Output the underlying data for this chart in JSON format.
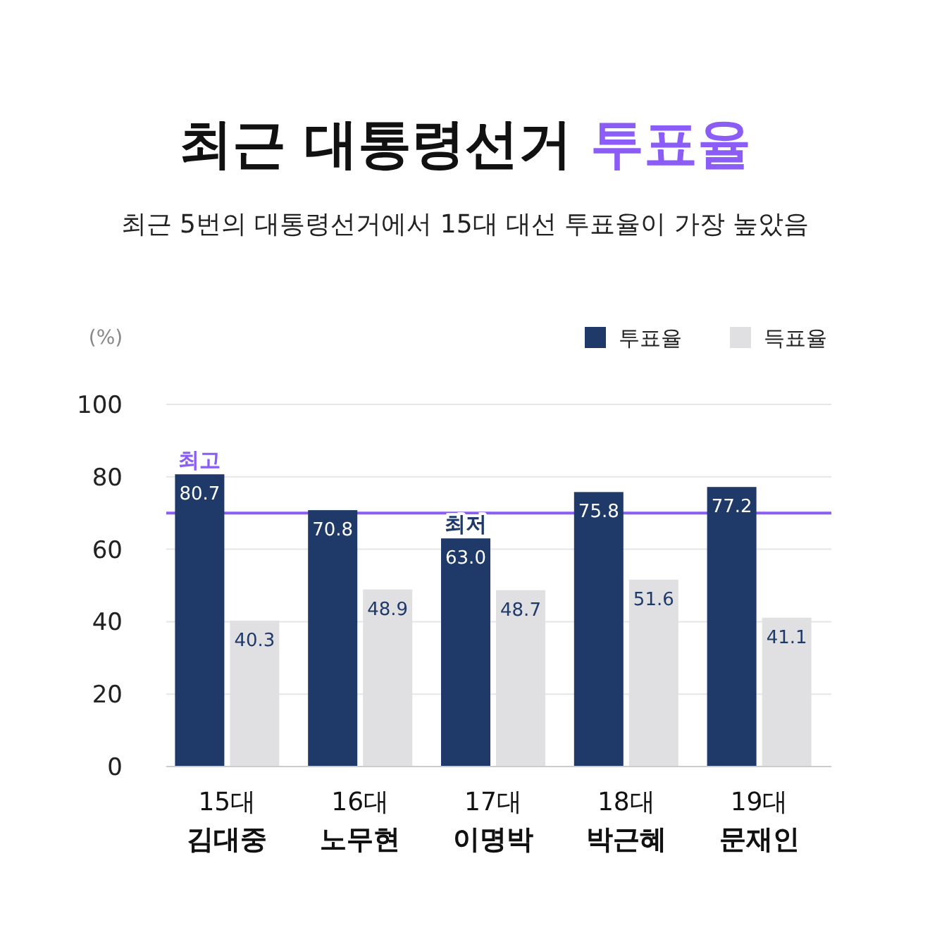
{
  "chart_data": {
    "type": "bar",
    "title": "최근 대통령선거 투표율",
    "subtitle": "최근 5번의 대통령선거에서 15대 대선 투표율이 가장 높았음",
    "ylabel": "(%)",
    "categories": [
      "15대\n김대중",
      "16대\n노무현",
      "17대\n이명박",
      "18대\n박근혜",
      "19대\n문재인"
    ],
    "series": [
      {
        "name": "투표율",
        "color": "#1f3a68",
        "values": [
          80.7,
          70.8,
          63.0,
          75.8,
          77.2
        ],
        "value_labels": [
          "80.7",
          "70.8",
          "63.0",
          "75.8",
          "77.2"
        ]
      },
      {
        "name": "득표율",
        "color": "#e0e0e3",
        "values": [
          40.3,
          48.9,
          48.7,
          51.6,
          41.1
        ],
        "value_labels": [
          "40.3",
          "48.9",
          "48.7",
          "51.6",
          "41.1"
        ]
      }
    ],
    "ylim": [
      0,
      100
    ],
    "yticks": [
      0,
      20,
      40,
      60,
      80,
      100
    ],
    "grid": "y",
    "legend": "top right",
    "ref_lines": [
      {
        "axis": "y",
        "value": 70,
        "color": "#8b5cf6"
      }
    ],
    "annotations": [
      {
        "text": "최고",
        "x": "15대\n김대중",
        "y": 80.7
      },
      {
        "text": "최저",
        "x": "17대\n이명박",
        "y": 63.0
      }
    ]
  }
}
